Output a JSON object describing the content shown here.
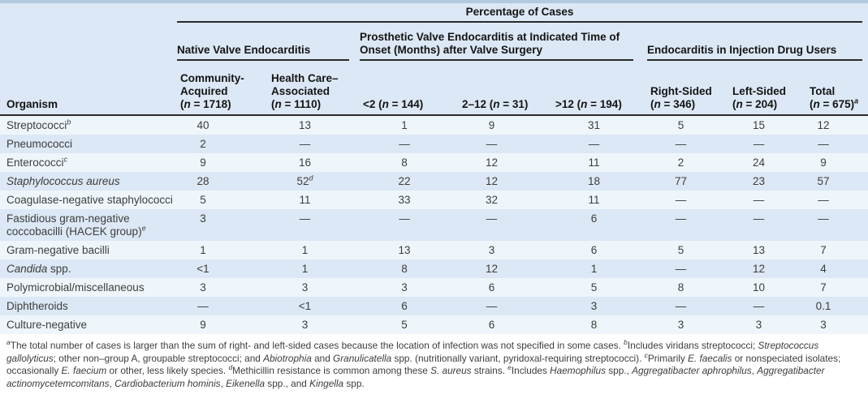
{
  "title": "Percentage of Cases",
  "columns": {
    "organism_label": "Organism",
    "groups": [
      {
        "label": "Native Valve Endocarditis",
        "span": 2
      },
      {
        "label": "Prosthetic Valve Endocarditis at Indicated Time of Onset (Months) after Valve Surgery",
        "span": 3
      },
      {
        "label": "Endocarditis in Injection Drug Users",
        "span": 3
      }
    ],
    "sub": [
      {
        "label": "Community-Acquired",
        "n": "1718",
        "inline": false
      },
      {
        "label": "Health Care–Associated",
        "n": "1110",
        "inline": false
      },
      {
        "label": "<2",
        "n": "144",
        "inline": true
      },
      {
        "label": "2–12",
        "n": "31",
        "inline": true
      },
      {
        "label": ">12",
        "n": "194",
        "inline": true
      },
      {
        "label": "Right-Sided",
        "n": "346",
        "inline": false
      },
      {
        "label": "Left-Sided",
        "n": "204",
        "inline": false
      },
      {
        "label": "Total",
        "n": "675",
        "inline": false,
        "sup": "a"
      }
    ]
  },
  "rows": [
    {
      "organism": [
        {
          "t": "Streptococci"
        }
      ],
      "sup": "b",
      "values": [
        "40",
        "13",
        "1",
        "9",
        "31",
        "5",
        "15",
        "12"
      ]
    },
    {
      "organism": [
        {
          "t": "Pneumococci"
        }
      ],
      "values": [
        "2",
        "—",
        "—",
        "—",
        "—",
        "—",
        "—",
        "—"
      ]
    },
    {
      "organism": [
        {
          "t": "Enterococci"
        }
      ],
      "sup": "c",
      "values": [
        "9",
        "16",
        "8",
        "12",
        "11",
        "2",
        "24",
        "9"
      ]
    },
    {
      "organism": [
        {
          "t": "Staphylococcus aureus",
          "i": true
        }
      ],
      "values": [
        "28",
        "52^d",
        "22",
        "12",
        "18",
        "77",
        "23",
        "57"
      ]
    },
    {
      "organism": [
        {
          "t": "Coagulase-negative staphylococci"
        }
      ],
      "values": [
        "5",
        "11",
        "33",
        "32",
        "11",
        "—",
        "—",
        "—"
      ]
    },
    {
      "organism": [
        {
          "t": "Fastidious gram-negative coccobacilli (HACEK group)"
        }
      ],
      "sup": "e",
      "values": [
        "3",
        "—",
        "—",
        "—",
        "6",
        "—",
        "—",
        "—"
      ]
    },
    {
      "organism": [
        {
          "t": "Gram-negative bacilli"
        }
      ],
      "values": [
        "1",
        "1",
        "13",
        "3",
        "6",
        "5",
        "13",
        "7"
      ]
    },
    {
      "organism": [
        {
          "t": "Candida",
          "i": true
        },
        {
          "t": " spp."
        }
      ],
      "values": [
        "<1",
        "1",
        "8",
        "12",
        "1",
        "—",
        "12",
        "4"
      ]
    },
    {
      "organism": [
        {
          "t": "Polymicrobial/miscellaneous"
        }
      ],
      "values": [
        "3",
        "3",
        "3",
        "6",
        "5",
        "8",
        "10",
        "7"
      ]
    },
    {
      "organism": [
        {
          "t": "Diphtheroids"
        }
      ],
      "values": [
        "—",
        "<1",
        "6",
        "—",
        "3",
        "—",
        "—",
        "0.1"
      ]
    },
    {
      "organism": [
        {
          "t": "Culture-negative"
        }
      ],
      "values": [
        "9",
        "3",
        "5",
        "6",
        "8",
        "3",
        "3",
        "3"
      ]
    }
  ],
  "footnotes": [
    {
      "sup": "a"
    },
    {
      "t": "The total number of cases is larger than the sum of right- and left-sided cases because the location of infection was not specified in some cases.  "
    },
    {
      "sup": "b"
    },
    {
      "t": "Includes viridans streptococci; "
    },
    {
      "t": "Streptococcus gallolyticus",
      "i": true
    },
    {
      "t": "; other non–group A, groupable streptococci; and "
    },
    {
      "t": "Abiotrophia",
      "i": true
    },
    {
      "t": " and "
    },
    {
      "t": "Granulicatella",
      "i": true
    },
    {
      "t": " spp. (nutritionally variant, pyridoxal-requiring streptococci).  "
    },
    {
      "sup": "c"
    },
    {
      "t": "Primarily "
    },
    {
      "t": "E. faecalis",
      "i": true
    },
    {
      "t": " or nonspeciated isolates; occasionally "
    },
    {
      "t": "E. faecium",
      "i": true
    },
    {
      "t": " or other, less likely species.  "
    },
    {
      "sup": "d"
    },
    {
      "t": "Methicillin resistance is common among these "
    },
    {
      "t": "S. aureus",
      "i": true
    },
    {
      "t": " strains.  "
    },
    {
      "sup": "e"
    },
    {
      "t": "Includes "
    },
    {
      "t": "Haemophilus",
      "i": true
    },
    {
      "t": " spp., "
    },
    {
      "t": "Aggregatibacter aphrophilus",
      "i": true
    },
    {
      "t": ", "
    },
    {
      "t": "Aggregatibacter actinomycetemcomitans",
      "i": true
    },
    {
      "t": ", "
    },
    {
      "t": "Cardiobacterium hominis",
      "i": true
    },
    {
      "t": ", "
    },
    {
      "t": "Eikenella",
      "i": true
    },
    {
      "t": " spp., and "
    },
    {
      "t": "Kingella",
      "i": true
    },
    {
      "t": " spp."
    }
  ]
}
